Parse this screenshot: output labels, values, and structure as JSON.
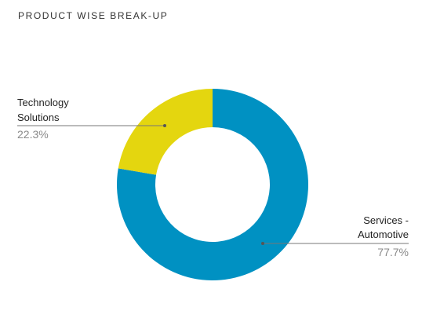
{
  "chart_data": {
    "type": "pie",
    "title": "PRODUCT WISE BREAK-UP",
    "categories": [
      "Services - Automotive",
      "Technology Solutions"
    ],
    "values": [
      77.7,
      22.3
    ],
    "colors": [
      "#0091c2",
      "#e4d60f"
    ],
    "donut": true,
    "labels": [
      {
        "lines": [
          "Technology",
          "Solutions"
        ],
        "pct": "22.3%"
      },
      {
        "lines": [
          "Services -",
          "Automotive"
        ],
        "pct": "77.7%"
      }
    ]
  }
}
